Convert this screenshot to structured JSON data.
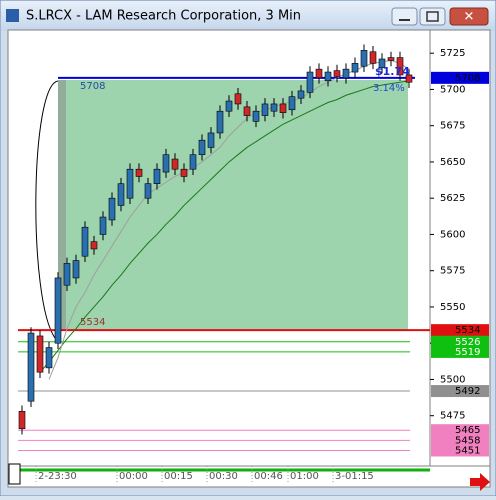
{
  "chart_data": {
    "type": "candlestick",
    "title": "S.LRCX - LAM Research Corporation, 3 Min",
    "categories": [
      null,
      null,
      "2-23:30",
      null,
      null,
      null,
      null,
      null,
      null,
      null,
      null,
      "00:00",
      null,
      null,
      null,
      null,
      "00:15",
      null,
      null,
      null,
      null,
      "00:30",
      null,
      null,
      null,
      null,
      "00:46",
      null,
      null,
      null,
      "01:00",
      null,
      null,
      null,
      null,
      "3-01:15",
      null,
      null,
      null,
      null,
      null,
      null,
      null,
      null
    ],
    "open": [
      5478,
      5485,
      5530,
      5508,
      5525,
      5565,
      5570,
      5585,
      5595,
      5600,
      5610,
      5620,
      5625,
      5645,
      5625,
      5635,
      5643,
      5652,
      5645,
      5645,
      5655,
      5660,
      5670,
      5685,
      5697,
      5688,
      5678,
      5682,
      5685,
      5690,
      5686,
      5694,
      5698,
      5714,
      5706,
      5713,
      5708,
      5712,
      5716,
      5726,
      5715,
      5722,
      5722,
      5710
    ],
    "high": [
      5482,
      5536,
      5534,
      5526,
      5574,
      5584,
      5586,
      5609,
      5599,
      5616,
      5629,
      5639,
      5649,
      5649,
      5639,
      5649,
      5659,
      5656,
      5649,
      5659,
      5669,
      5674,
      5689,
      5696,
      5701,
      5692,
      5689,
      5694,
      5694,
      5694,
      5699,
      5703,
      5716,
      5718,
      5716,
      5717,
      5718,
      5722,
      5731,
      5730,
      5725,
      5726,
      5726,
      5714
    ],
    "low": [
      5462,
      5481,
      5501,
      5504,
      5521,
      5561,
      5566,
      5581,
      5586,
      5596,
      5606,
      5616,
      5621,
      5636,
      5621,
      5631,
      5639,
      5641,
      5636,
      5641,
      5651,
      5656,
      5666,
      5681,
      5686,
      5678,
      5674,
      5678,
      5681,
      5680,
      5682,
      5690,
      5694,
      5704,
      5702,
      5705,
      5704,
      5708,
      5712,
      5714,
      5711,
      5716,
      5706,
      5701
    ],
    "close": [
      5466,
      5532,
      5505,
      5522,
      5570,
      5580,
      5582,
      5605,
      5590,
      5612,
      5625,
      5635,
      5645,
      5640,
      5635,
      5645,
      5655,
      5645,
      5640,
      5655,
      5665,
      5670,
      5685,
      5692,
      5690,
      5682,
      5685,
      5690,
      5690,
      5684,
      5695,
      5699,
      5712,
      5708,
      5712,
      5709,
      5714,
      5718,
      5727,
      5718,
      5721,
      5720,
      5710,
      5705
    ],
    "up_color": "#2a6fb0",
    "down_color": "#d0282a",
    "series": [
      {
        "color": "#1a7a1a",
        "values": [
          null,
          null,
          5505,
          5512,
          5520,
          5528,
          5535,
          5543,
          5550,
          5557,
          5565,
          5572,
          5580,
          5587,
          5594,
          5600,
          5607,
          5613,
          5620,
          5626,
          5632,
          5638,
          5644,
          5650,
          5655,
          5660,
          5664,
          5668,
          5672,
          5676,
          5679,
          5682,
          5685,
          5688,
          5691,
          5693,
          5696,
          5698,
          5700,
          5702,
          5703,
          5704,
          5705,
          5706
        ]
      },
      {
        "color": "#a0a0a0",
        "values": [
          null,
          null,
          null,
          5500,
          5515,
          5535,
          5550,
          5560,
          5572,
          5582,
          5592,
          5602,
          5612,
          5620,
          5628,
          5632,
          5636,
          5640,
          5643,
          5646,
          5650,
          5655,
          5660,
          5668,
          5674,
          5680,
          5684,
          5686,
          5688,
          5690,
          5692,
          5694,
          5698,
          5702,
          5705,
          5708,
          5711,
          5713,
          5716,
          5718,
          5719,
          5720,
          5718,
          5714
        ]
      }
    ],
    "levels": [
      {
        "value": 5708,
        "color": "#0000dd"
      },
      {
        "value": 5534,
        "color": "#e01010"
      },
      {
        "value": 5526,
        "color": "#10c010"
      },
      {
        "value": 5519,
        "color": "#10c010"
      },
      {
        "value": 5492,
        "color": "#909090"
      },
      {
        "value": 5465,
        "color": "#f080c0"
      },
      {
        "value": 5458,
        "color": "#f080c0"
      },
      {
        "value": 5451,
        "color": "#f080c0"
      }
    ],
    "annotations": [
      "$1.74",
      "3.14%"
    ],
    "ylim": [
      5441,
      5741
    ],
    "yticks": [
      5475,
      5500,
      5525,
      5550,
      5575,
      5600,
      5625,
      5650,
      5675,
      5700,
      5725
    ]
  }
}
